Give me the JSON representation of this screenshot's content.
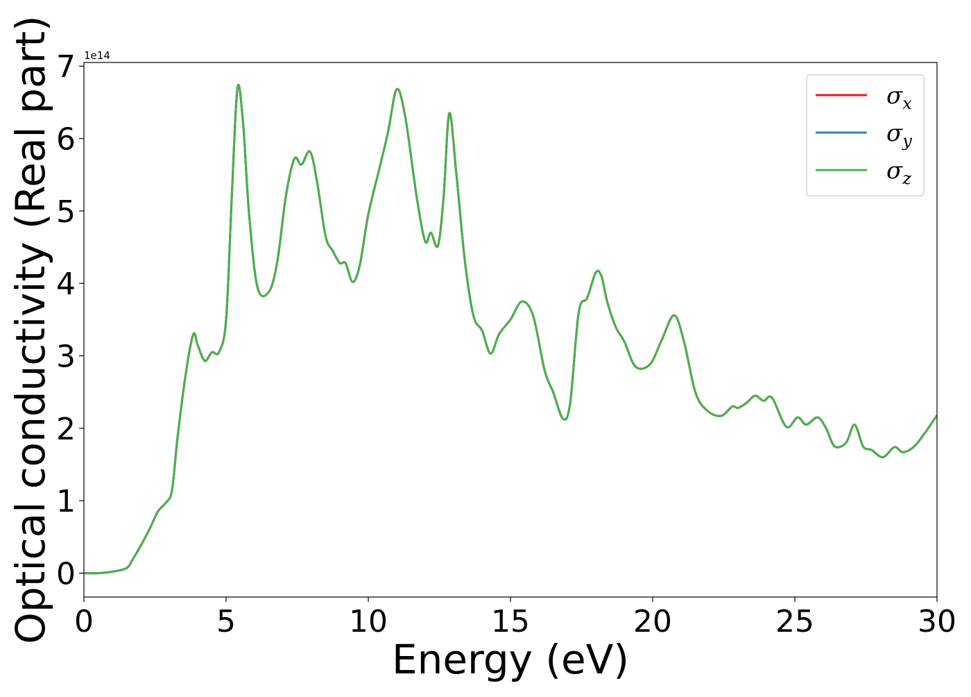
{
  "chart_data": {
    "type": "line",
    "title": "",
    "xlabel": "Energy (eV)",
    "ylabel": "Optical conductivity (Real part)",
    "y_offset_text": "1e14",
    "xlim": [
      0,
      30
    ],
    "ylim": [
      -0.33,
      7.05
    ],
    "x_ticks": [
      0,
      5,
      10,
      15,
      20,
      25,
      30
    ],
    "x_tick_labels": [
      "0",
      "5",
      "10",
      "15",
      "20",
      "25",
      "30"
    ],
    "y_ticks": [
      0,
      1,
      2,
      3,
      4,
      5,
      6,
      7
    ],
    "y_tick_labels": [
      "0",
      "1",
      "2",
      "3",
      "4",
      "5",
      "6",
      "7"
    ],
    "grid": false,
    "legend_position": "top-right",
    "series": [
      {
        "name": "σx",
        "symbol": "σ",
        "subscript": "x",
        "color": "#e41a1c"
      },
      {
        "name": "σy",
        "symbol": "σ",
        "subscript": "y",
        "color": "#377eb8"
      },
      {
        "name": "σz",
        "symbol": "σ",
        "subscript": "z",
        "color": "#4daf4a"
      }
    ],
    "x": [
      0,
      0.5,
      1.0,
      1.5,
      1.7,
      2.0,
      2.3,
      2.6,
      2.9,
      3.1,
      3.3,
      3.6,
      3.85,
      4.0,
      4.25,
      4.5,
      4.75,
      5.0,
      5.2,
      5.4,
      5.6,
      5.8,
      6.1,
      6.5,
      6.8,
      7.1,
      7.4,
      7.65,
      7.95,
      8.2,
      8.5,
      8.75,
      9.0,
      9.2,
      9.45,
      9.7,
      10.0,
      10.4,
      10.7,
      11.0,
      11.3,
      11.7,
      12.0,
      12.2,
      12.45,
      12.65,
      12.85,
      13.1,
      13.4,
      13.7,
      14.0,
      14.3,
      14.6,
      15.0,
      15.4,
      15.8,
      16.2,
      16.5,
      16.85,
      17.1,
      17.4,
      17.7,
      18.0,
      18.2,
      18.4,
      18.7,
      19.0,
      19.4,
      19.9,
      20.3,
      20.75,
      21.1,
      21.5,
      21.9,
      22.4,
      22.8,
      23.0,
      23.3,
      23.6,
      23.9,
      24.2,
      24.7,
      25.1,
      25.4,
      25.8,
      26.1,
      26.4,
      26.8,
      27.1,
      27.4,
      27.7,
      28.1,
      28.5,
      28.8,
      29.2,
      29.6,
      30.0
    ],
    "y_units_note": "",
    "y_sigma_x": [
      0.0,
      0.0,
      0.02,
      0.07,
      0.18,
      0.38,
      0.6,
      0.85,
      0.98,
      1.15,
      1.9,
      2.8,
      3.3,
      3.15,
      2.93,
      3.05,
      3.05,
      3.5,
      5.2,
      6.7,
      6.2,
      5.0,
      3.95,
      3.88,
      4.3,
      5.2,
      5.72,
      5.64,
      5.82,
      5.4,
      4.65,
      4.45,
      4.28,
      4.28,
      4.02,
      4.25,
      4.95,
      5.6,
      6.1,
      6.68,
      6.3,
      5.2,
      4.58,
      4.7,
      4.52,
      5.2,
      6.35,
      5.5,
      4.3,
      3.55,
      3.35,
      3.03,
      3.3,
      3.5,
      3.75,
      3.55,
      2.8,
      2.5,
      2.13,
      2.35,
      3.6,
      3.8,
      4.15,
      4.1,
      3.75,
      3.4,
      3.2,
      2.85,
      2.88,
      3.2,
      3.56,
      3.2,
      2.5,
      2.25,
      2.17,
      2.3,
      2.28,
      2.35,
      2.45,
      2.38,
      2.42,
      2.02,
      2.15,
      2.05,
      2.15,
      2.0,
      1.75,
      1.8,
      2.05,
      1.75,
      1.7,
      1.6,
      1.74,
      1.67,
      1.75,
      1.95,
      2.18
    ]
  }
}
